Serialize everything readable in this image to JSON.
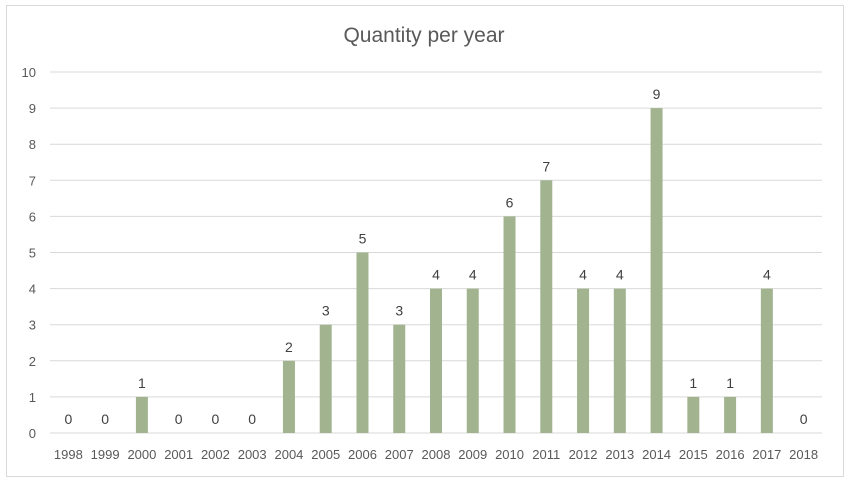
{
  "chart_data": {
    "type": "bar",
    "title": "Quantity per year",
    "xlabel": "",
    "ylabel": "",
    "categories": [
      "1998",
      "1999",
      "2000",
      "2001",
      "2002",
      "2003",
      "2004",
      "2005",
      "2006",
      "2007",
      "2008",
      "2009",
      "2010",
      "2011",
      "2012",
      "2013",
      "2014",
      "2015",
      "2016",
      "2017",
      "2018"
    ],
    "values": [
      0,
      0,
      1,
      0,
      0,
      0,
      2,
      3,
      5,
      3,
      4,
      4,
      6,
      7,
      4,
      4,
      9,
      1,
      1,
      4,
      0
    ],
    "ylim": [
      0,
      10
    ],
    "yticks": [
      "0",
      "1",
      "2",
      "3",
      "4",
      "5",
      "6",
      "7",
      "8",
      "9",
      "10"
    ],
    "grid": true,
    "data_labels": true,
    "legend": "none",
    "bar_color": "#a2b48f",
    "gridline_color": "#d9d9d9",
    "text_color": "#595959"
  }
}
